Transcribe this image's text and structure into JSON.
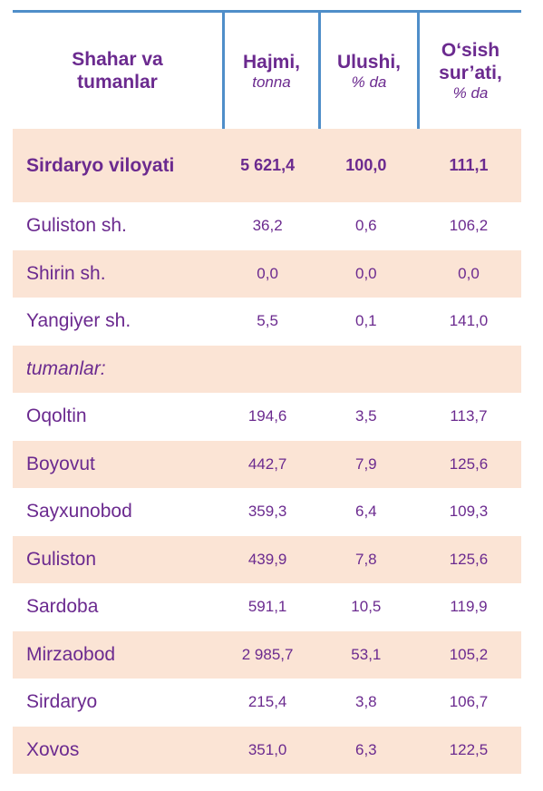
{
  "header": {
    "col1": [
      "Shahar va",
      "tumanlar"
    ],
    "col2": {
      "title": "Hajmi,",
      "unit": "tonna"
    },
    "col3": {
      "title": "Ulushi,",
      "unit": "% da"
    },
    "col4": {
      "title": [
        "O‘sish",
        "sur’ati,"
      ],
      "unit": "% da"
    }
  },
  "total": {
    "name": "Sirdaryo viloyati",
    "volume": "5 621,4",
    "share": "100,0",
    "growth": "111,1"
  },
  "rows": [
    {
      "name": "Guliston sh.",
      "volume": "36,2",
      "share": "0,6",
      "growth": "106,2"
    },
    {
      "name": "Shirin sh.",
      "volume": "0,0",
      "share": "0,0",
      "growth": "0,0"
    },
    {
      "name": "Yangiyer sh.",
      "volume": "5,5",
      "share": "0,1",
      "growth": "141,0"
    },
    {
      "name": "tumanlar:",
      "volume": "",
      "share": "",
      "growth": ""
    },
    {
      "name": "Oqoltin",
      "volume": "194,6",
      "share": "3,5",
      "growth": "113,7"
    },
    {
      "name": "Boyovut",
      "volume": "442,7",
      "share": "7,9",
      "growth": "125,6"
    },
    {
      "name": "Sayxunobod",
      "volume": "359,3",
      "share": "6,4",
      "growth": "109,3"
    },
    {
      "name": "Guliston",
      "volume": "439,9",
      "share": "7,8",
      "growth": "125,6"
    },
    {
      "name": "Sardoba",
      "volume": "591,1",
      "share": "10,5",
      "growth": "119,9"
    },
    {
      "name": "Mirzaobod",
      "volume": "2 985,7",
      "share": "53,1",
      "growth": "105,2"
    },
    {
      "name": "Sirdaryo",
      "volume": "215,4",
      "share": "3,8",
      "growth": "106,7"
    },
    {
      "name": "Xovos",
      "volume": "351,0",
      "share": "6,3",
      "growth": "122,5"
    }
  ],
  "colors": {
    "text": "#6b2a8f",
    "rule": "#4f8ec9",
    "shade": "#fbe4d5"
  }
}
